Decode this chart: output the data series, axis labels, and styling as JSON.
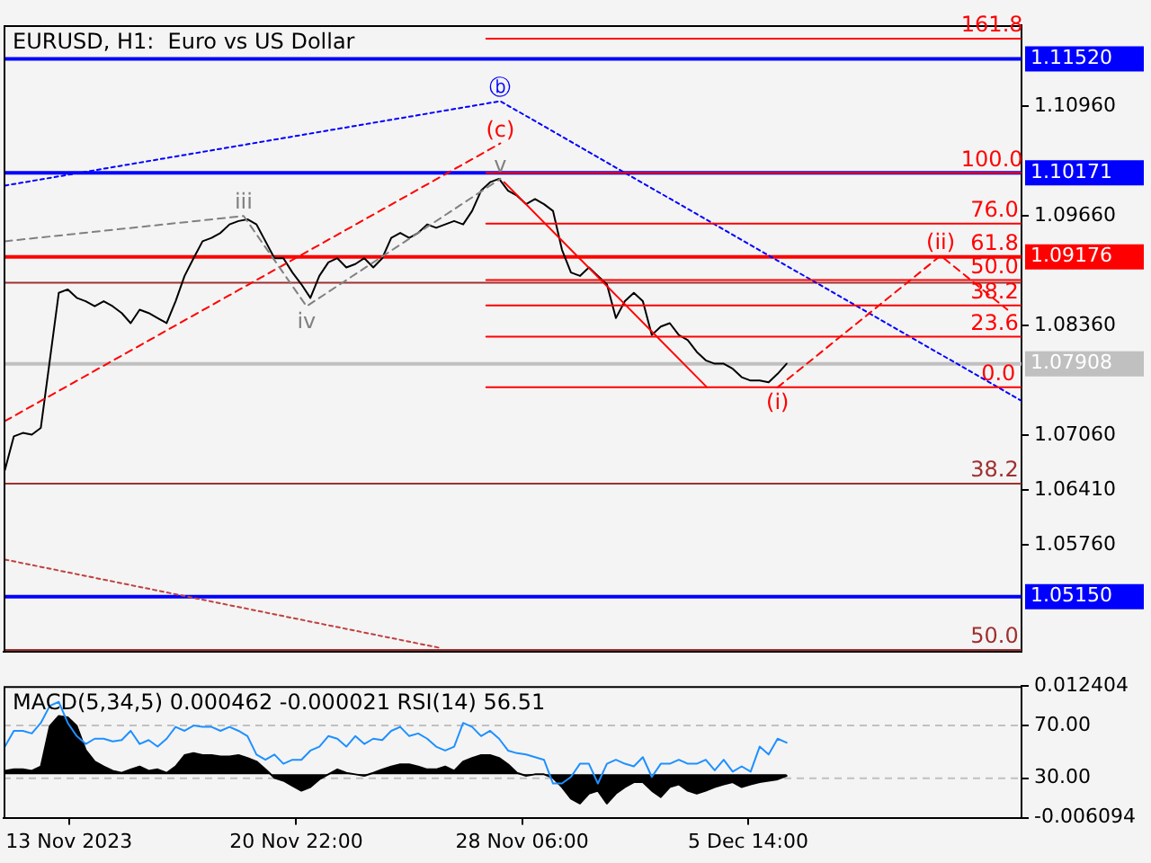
{
  "chart_data": [
    {
      "type": "line",
      "title": "EURUSD, H1:  Euro vs US Dollar",
      "tick_labels": "y",
      "x": [
        "2023-11-11T11:00",
        "2023-11-11T18:00",
        "2023-11-12T01:00",
        "2023-11-12T08:00",
        "2023-11-12T15:00",
        "2023-11-12T22:00",
        "2023-11-13T05:00",
        "2023-11-13T12:00",
        "2023-11-13T19:00",
        "2023-11-14T02:00",
        "2023-11-14T09:00",
        "2023-11-14T16:00",
        "2023-11-14T23:00",
        "2023-11-15T06:00",
        "2023-11-15T13:00",
        "2023-11-15T20:00",
        "2023-11-16T03:00",
        "2023-11-16T10:00",
        "2023-11-16T17:00",
        "2023-11-17T00:00",
        "2023-11-17T07:00",
        "2023-11-17T14:00",
        "2023-11-17T21:00",
        "2023-11-18T04:00",
        "2023-11-18T11:00",
        "2023-11-18T18:00",
        "2023-11-19T01:00",
        "2023-11-19T08:00",
        "2023-11-19T15:00",
        "2023-11-19T22:00",
        "2023-11-20T05:00",
        "2023-11-20T12:00",
        "2023-11-20T19:00",
        "2023-11-21T02:00",
        "2023-11-21T09:00",
        "2023-11-21T16:00",
        "2023-11-21T23:00",
        "2023-11-22T06:00",
        "2023-11-22T13:00",
        "2023-11-22T20:00",
        "2023-11-23T03:00",
        "2023-11-23T10:00",
        "2023-11-23T17:00",
        "2023-11-24T00:00",
        "2023-11-24T07:00",
        "2023-11-24T14:00",
        "2023-11-24T21:00",
        "2023-11-25T04:00",
        "2023-11-25T11:00",
        "2023-11-25T18:00",
        "2023-11-26T01:00",
        "2023-11-26T08:00",
        "2023-11-26T15:00",
        "2023-11-26T22:00",
        "2023-11-27T05:00",
        "2023-11-27T12:00",
        "2023-11-27T19:00",
        "2023-11-28T02:00",
        "2023-11-28T09:00",
        "2023-11-28T16:00",
        "2023-11-28T23:00",
        "2023-11-29T06:00",
        "2023-11-29T13:00",
        "2023-11-29T20:00",
        "2023-11-30T03:00",
        "2023-11-30T10:00",
        "2023-11-30T17:00",
        "2023-12-01T00:00",
        "2023-12-01T07:00",
        "2023-12-01T14:00",
        "2023-12-01T21:00",
        "2023-12-02T04:00",
        "2023-12-02T11:00",
        "2023-12-02T18:00",
        "2023-12-03T01:00",
        "2023-12-03T08:00",
        "2023-12-03T15:00",
        "2023-12-03T22:00",
        "2023-12-04T05:00",
        "2023-12-04T12:00",
        "2023-12-04T19:00",
        "2023-12-05T02:00",
        "2023-12-05T09:00",
        "2023-12-05T16:00",
        "2023-12-05T23:00",
        "2023-12-06T06:00",
        "2023-12-06T13:00",
        "2023-12-06T20:00"
      ],
      "xlim": [
        "2023-11-11T10:00",
        "2023-12-14T11:00"
      ],
      "ylim": [
        1.045,
        1.1192
      ],
      "yticks": [
        {
          "value": 1.1096,
          "label": "1.10960"
        },
        {
          "value": 1.0966,
          "label": "1.09660"
        },
        {
          "value": 1.0836,
          "label": "1.08360"
        },
        {
          "value": 1.0706,
          "label": "1.07060"
        },
        {
          "value": 1.0641,
          "label": "1.06410"
        },
        {
          "value": 1.0576,
          "label": "1.05760"
        }
      ],
      "series": [
        {
          "color": "#000000",
          "values": [
            1.0665,
            1.0705,
            1.0709,
            1.0707,
            1.0715,
            1.0795,
            1.0875,
            1.0879,
            1.0869,
            1.0865,
            1.0859,
            1.0865,
            1.0859,
            1.0851,
            1.0839,
            1.0855,
            1.0851,
            1.0845,
            1.0839,
            1.0865,
            1.0895,
            1.0916,
            1.0936,
            1.094,
            1.0946,
            1.0956,
            1.096,
            1.0962,
            1.0956,
            1.0936,
            1.0916,
            1.0916,
            1.0899,
            1.0885,
            1.0869,
            1.0895,
            1.0911,
            1.0916,
            1.0905,
            1.0909,
            1.0916,
            1.0905,
            1.0916,
            1.094,
            1.0946,
            1.094,
            1.0946,
            1.0956,
            1.0952,
            1.0956,
            1.096,
            1.0956,
            1.0972,
            1.0996,
            1.1006,
            1.101,
            1.0996,
            1.099,
            1.098,
            1.0986,
            1.098,
            1.0972,
            1.0926,
            1.0899,
            1.0895,
            1.0905,
            1.0895,
            1.0885,
            1.0845,
            1.0865,
            1.0875,
            1.0865,
            1.0825,
            1.0835,
            1.0839,
            1.0825,
            1.0819,
            1.0805,
            1.0795,
            1.0791,
            1.0791,
            1.0785,
            1.0775,
            1.0771,
            1.0771,
            1.0769,
            1.0779,
            1.0791
          ]
        },
        {
          "color": "#0000ff",
          "line_style": "dotted",
          "x": [
            "2023-11-11T11:00",
            "2023-11-27T13:00",
            "2023-12-14T11:00"
          ],
          "values": [
            1.1002,
            1.1102,
            1.0747
          ]
        },
        {
          "color": "#ff0000",
          "line_style": "dashed",
          "x": [
            "2023-11-11T11:00",
            "2023-11-27T13:00"
          ],
          "values": [
            1.0723,
            1.1052
          ]
        },
        {
          "color": "#808080",
          "line_style": "dashed",
          "x": [
            "2023-11-11T11:00",
            "2023-11-19T05:00",
            "2023-11-21T06:00",
            "2023-11-27T13:00"
          ],
          "values": [
            1.0936,
            1.0966,
            1.0859,
            1.101
          ]
        },
        {
          "color": "#ff0000",
          "x": [
            "2023-11-27T16:00",
            "2023-12-04T06:00"
          ],
          "values": [
            1.1006,
            1.0763
          ]
        },
        {
          "color": "#ff0000",
          "line_style": "dashed",
          "x": [
            "2023-12-06T13:00",
            "2023-12-11T20:00",
            "2023-12-14T00:00"
          ],
          "values": [
            1.0763,
            1.0919,
            1.0855
          ]
        },
        {
          "color": "#c04040",
          "line_style": "dotted",
          "x": [
            "2023-11-11T11:00",
            "2023-11-25T15:00"
          ],
          "values": [
            1.0559,
            1.0454
          ]
        },
        {
          "color": "#ff0000",
          "x": [
            "2023-11-27T02:00",
            "2023-12-14T11:00"
          ],
          "values": [
            1.1176,
            1.1176
          ]
        },
        {
          "color": "#ff0000",
          "x": [
            "2023-11-27T02:00",
            "2023-12-14T11:00"
          ],
          "values": [
            1.1017,
            1.1017
          ]
        },
        {
          "color": "#ff0000",
          "x": [
            "2023-11-27T02:00",
            "2023-12-14T11:00"
          ],
          "values": [
            1.0957,
            1.0957
          ]
        },
        {
          "color": "#ff0000",
          "x": [
            "2023-11-27T02:00",
            "2023-12-14T11:00"
          ],
          "values": [
            1.089,
            1.089
          ]
        },
        {
          "color": "#ff0000",
          "x": [
            "2023-11-27T02:00",
            "2023-12-14T11:00"
          ],
          "values": [
            1.086,
            1.086
          ]
        },
        {
          "color": "#ff0000",
          "x": [
            "2023-11-27T02:00",
            "2023-12-14T11:00"
          ],
          "values": [
            1.0823,
            1.0823
          ]
        },
        {
          "color": "#ff0000",
          "x": [
            "2023-11-27T02:00",
            "2023-12-14T11:00"
          ],
          "values": [
            1.0763,
            1.0763
          ]
        }
      ],
      "ref_lines": [
        {
          "axis": "y",
          "value": 1.1152,
          "label": "1.11520",
          "color": "#0000ff"
        },
        {
          "axis": "y",
          "value": 1.10171,
          "label": "1.10171",
          "color": "#0000ff"
        },
        {
          "axis": "y",
          "value": 1.09176,
          "label": "1.09176",
          "color": "#ff0000"
        },
        {
          "axis": "y",
          "value": 1.0887,
          "color": "#a03030"
        },
        {
          "axis": "y",
          "value": 1.07908,
          "label": "1.07908",
          "color": "#c0c0c0"
        },
        {
          "axis": "y",
          "value": 1.0649,
          "color": "#a03030"
        },
        {
          "axis": "y",
          "value": 1.0515,
          "label": "1.05150",
          "color": "#0000ff"
        },
        {
          "axis": "y",
          "value": 1.0452,
          "color": "#a03030"
        }
      ],
      "annotations": [
        {
          "text": "ⓑ",
          "x": "2023-11-27T13:00",
          "y": 1.1102
        },
        {
          "text": "(c)",
          "x": "2023-11-27T13:00",
          "y": 1.1052
        },
        {
          "text": "v",
          "x": "2023-11-27T13:00",
          "y": 1.101
        },
        {
          "text": "iii",
          "x": "2023-11-19T05:00",
          "y": 1.0966
        },
        {
          "text": "iv",
          "x": "2023-11-21T06:00",
          "y": 1.0859
        },
        {
          "text": "(i)",
          "x": "2023-12-06T13:00",
          "y": 1.0763
        },
        {
          "text": "(ii)",
          "x": "2023-12-11T20:00",
          "y": 1.0919
        },
        {
          "text": "161.8",
          "x": "2023-12-13T12:00",
          "y": 1.1176
        },
        {
          "text": "100.0",
          "x": "2023-12-13T12:00",
          "y": 1.1017
        },
        {
          "text": "76.0",
          "x": "2023-12-13T14:00",
          "y": 1.0957
        },
        {
          "text": "61.8",
          "x": "2023-12-13T14:00",
          "y": 1.09176
        },
        {
          "text": "50.0",
          "x": "2023-12-13T14:00",
          "y": 1.089
        },
        {
          "text": "38.2",
          "x": "2023-12-13T14:00",
          "y": 1.086
        },
        {
          "text": "23.6",
          "x": "2023-12-13T14:00",
          "y": 1.0823
        },
        {
          "text": "0.0",
          "x": "2023-12-13T17:00",
          "y": 1.0763
        },
        {
          "text": "38.2",
          "x": "2023-12-13T14:00",
          "y": 1.0649
        },
        {
          "text": "50.0",
          "x": "2023-12-13T14:00",
          "y": 1.0452
        }
      ]
    },
    {
      "type": "line",
      "title": "MACD(5,34,5) 0.000462 -0.000021 RSI(14) 56.51",
      "x": [
        "2023-11-11T11:00",
        "2023-11-11T18:00",
        "2023-11-12T01:00",
        "2023-11-12T08:00",
        "2023-11-12T15:00",
        "2023-11-12T22:00",
        "2023-11-13T05:00",
        "2023-11-13T12:00",
        "2023-11-13T19:00",
        "2023-11-14T02:00",
        "2023-11-14T09:00",
        "2023-11-14T16:00",
        "2023-11-14T23:00",
        "2023-11-15T06:00",
        "2023-11-15T13:00",
        "2023-11-15T20:00",
        "2023-11-16T03:00",
        "2023-11-16T10:00",
        "2023-11-16T17:00",
        "2023-11-17T00:00",
        "2023-11-17T07:00",
        "2023-11-17T14:00",
        "2023-11-17T21:00",
        "2023-11-18T04:00",
        "2023-11-18T11:00",
        "2023-11-18T18:00",
        "2023-11-19T01:00",
        "2023-11-19T08:00",
        "2023-11-19T15:00",
        "2023-11-19T22:00",
        "2023-11-20T05:00",
        "2023-11-20T12:00",
        "2023-11-20T19:00",
        "2023-11-21T02:00",
        "2023-11-21T09:00",
        "2023-11-21T16:00",
        "2023-11-21T23:00",
        "2023-11-22T06:00",
        "2023-11-22T13:00",
        "2023-11-22T20:00",
        "2023-11-23T03:00",
        "2023-11-23T10:00",
        "2023-11-23T17:00",
        "2023-11-24T00:00",
        "2023-11-24T07:00",
        "2023-11-24T14:00",
        "2023-11-24T21:00",
        "2023-11-25T04:00",
        "2023-11-25T11:00",
        "2023-11-25T18:00",
        "2023-11-26T01:00",
        "2023-11-26T08:00",
        "2023-11-26T15:00",
        "2023-11-26T22:00",
        "2023-11-27T05:00",
        "2023-11-27T12:00",
        "2023-11-27T19:00",
        "2023-11-28T02:00",
        "2023-11-28T09:00",
        "2023-11-28T16:00",
        "2023-11-28T23:00",
        "2023-11-29T06:00",
        "2023-11-29T13:00",
        "2023-11-29T20:00",
        "2023-11-30T03:00",
        "2023-11-30T10:00",
        "2023-11-30T17:00",
        "2023-12-01T00:00",
        "2023-12-01T07:00",
        "2023-12-01T14:00",
        "2023-12-01T21:00",
        "2023-12-02T04:00",
        "2023-12-02T11:00",
        "2023-12-02T18:00",
        "2023-12-03T01:00",
        "2023-12-03T08:00",
        "2023-12-03T15:00",
        "2023-12-03T22:00",
        "2023-12-04T05:00",
        "2023-12-04T12:00",
        "2023-12-04T19:00",
        "2023-12-05T02:00",
        "2023-12-05T09:00",
        "2023-12-05T16:00",
        "2023-12-05T23:00",
        "2023-12-06T06:00",
        "2023-12-06T13:00",
        "2023-12-06T20:00"
      ],
      "xlim": [
        "2023-11-11T10:00",
        "2023-12-14T11:00"
      ],
      "xticks": [
        {
          "value": "2023-11-13T13:00",
          "label": "13 Nov 2023"
        },
        {
          "value": "2023-11-20T22:00",
          "label": "20 Nov 22:00"
        },
        {
          "value": "2023-11-28T06:00",
          "label": "28 Nov 06:00"
        },
        {
          "value": "2023-12-05T14:00",
          "label": "5 Dec 14:00"
        }
      ],
      "ylim": [
        0,
        100
      ],
      "yticks": [
        {
          "value": 70,
          "label": "70.00"
        },
        {
          "value": 30,
          "label": "30.00"
        }
      ],
      "y2lim": [
        -0.006094,
        0.012404
      ],
      "y2ticks": [
        -0.006094,
        0.012404
      ],
      "series": [
        {
          "type": "area",
          "axis": "y2",
          "color": "#000000",
          "values": [
            0.0005,
            0.0007,
            0.0007,
            0.0005,
            0.0011,
            0.0068,
            0.0082,
            0.008,
            0.0068,
            0.0034,
            0.0018,
            0.0011,
            0.0005,
            0.0002,
            0.0007,
            0.0011,
            0.0005,
            0.0007,
            0.0002,
            0.0011,
            0.0027,
            0.003,
            0.0027,
            0.0027,
            0.0025,
            0.0025,
            0.0027,
            0.0023,
            0.0018,
            0.0007,
            -0.0005,
            -0.0009,
            -0.0016,
            -0.0023,
            -0.0018,
            -0.0007,
            0,
            0.0007,
            0.0002,
            0,
            -0.0002,
            0.0002,
            0.0007,
            0.0011,
            0.0014,
            0.0014,
            0.0011,
            0.0007,
            0.0007,
            0.0011,
            0.0005,
            0.0018,
            0.0023,
            0.0027,
            0.0027,
            0.0023,
            0.0014,
            0.0002,
            -0.0002,
            0,
            0,
            -0.0005,
            -0.0018,
            -0.0034,
            -0.0041,
            -0.0027,
            -0.0023,
            -0.0041,
            -0.0027,
            -0.0018,
            -0.0011,
            -0.0011,
            -0.0023,
            -0.0032,
            -0.0018,
            -0.0014,
            -0.0023,
            -0.0027,
            -0.0023,
            -0.0018,
            -0.0014,
            -0.0011,
            -0.0018,
            -0.0014,
            -0.0011,
            -0.0009,
            -0.0007,
            -0.0002
          ]
        },
        {
          "color": "#1e90ff",
          "values": [
            54,
            66,
            66,
            64,
            72,
            85,
            88,
            72,
            62,
            56,
            60,
            60,
            58,
            59,
            66,
            56,
            59,
            54,
            60,
            69,
            66,
            70,
            69,
            69,
            66,
            69,
            66,
            62,
            48,
            44,
            48,
            41,
            44,
            44,
            51,
            54,
            62,
            60,
            54,
            62,
            56,
            60,
            59,
            66,
            69,
            62,
            64,
            60,
            54,
            51,
            54,
            72,
            69,
            62,
            66,
            60,
            51,
            49,
            48,
            46,
            44,
            26,
            26,
            31,
            41,
            41,
            26,
            41,
            44,
            41,
            39,
            46,
            31,
            41,
            41,
            44,
            41,
            41,
            44,
            36,
            44,
            35,
            39,
            35,
            54,
            48,
            60,
            57
          ]
        }
      ],
      "ref_lines": [
        {
          "axis": "y",
          "value": 70,
          "color": "#c0c0c0",
          "line_style": "dashed"
        },
        {
          "axis": "y",
          "value": 30,
          "color": "#c0c0c0",
          "line_style": "dashed"
        }
      ]
    }
  ]
}
